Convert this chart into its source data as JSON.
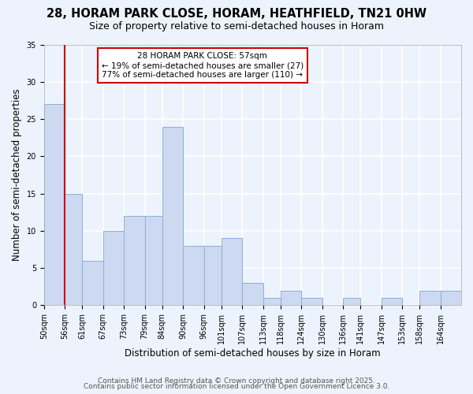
{
  "title1": "28, HORAM PARK CLOSE, HORAM, HEATHFIELD, TN21 0HW",
  "title2": "Size of property relative to semi-detached houses in Horam",
  "xlabel": "Distribution of semi-detached houses by size in Horam",
  "ylabel": "Number of semi-detached properties",
  "bin_edges": [
    50,
    56,
    61,
    67,
    73,
    79,
    84,
    90,
    96,
    101,
    107,
    113,
    118,
    124,
    130,
    136,
    141,
    147,
    153,
    158,
    164,
    170
  ],
  "bin_labels": [
    "50sqm",
    "56sqm",
    "61sqm",
    "67sqm",
    "73sqm",
    "79sqm",
    "84sqm",
    "90sqm",
    "96sqm",
    "101sqm",
    "107sqm",
    "113sqm",
    "118sqm",
    "124sqm",
    "130sqm",
    "136sqm",
    "141sqm",
    "147sqm",
    "153sqm",
    "158sqm",
    "164sqm"
  ],
  "counts": [
    27,
    15,
    6,
    10,
    12,
    12,
    24,
    8,
    8,
    9,
    3,
    1,
    2,
    1,
    0,
    1,
    0,
    1,
    0,
    2,
    2
  ],
  "bar_color": "#ccd9f0",
  "bar_edge_color": "#8ab0d8",
  "property_line_x": 56,
  "property_line_color": "#cc0000",
  "annotation_line1": "28 HORAM PARK CLOSE: 57sqm",
  "annotation_line2": "← 19% of semi-detached houses are smaller (27)",
  "annotation_line3": "77% of semi-detached houses are larger (110) →",
  "annotation_box_color": "#ffffff",
  "annotation_box_edge": "#cc0000",
  "ylim": [
    0,
    35
  ],
  "yticks": [
    0,
    5,
    10,
    15,
    20,
    25,
    30,
    35
  ],
  "footer1": "Contains HM Land Registry data © Crown copyright and database right 2025.",
  "footer2": "Contains public sector information licensed under the Open Government Licence 3.0.",
  "background_color": "#edf3fc",
  "plot_bg_color": "#edf3fc",
  "grid_color": "#ffffff",
  "title_fontsize": 10.5,
  "subtitle_fontsize": 9,
  "axis_label_fontsize": 8.5,
  "tick_fontsize": 7,
  "annotation_fontsize": 7.5,
  "footer_fontsize": 6.5
}
